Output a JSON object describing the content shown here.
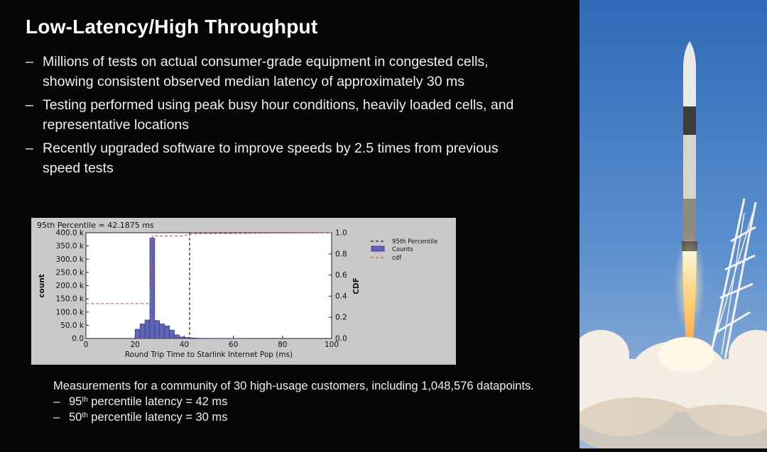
{
  "slide": {
    "title": "Low-Latency/High Throughput",
    "bullets": [
      "Millions of tests on actual consumer-grade equipment in congested cells, showing consistent observed median latency of approximately 30 ms",
      "Testing performed using peak busy hour conditions, heavily loaded cells, and representative locations",
      "Recently upgraded software to improve speeds by 2.5 times from previous speed tests"
    ],
    "bullet_marker": "–"
  },
  "measurements": {
    "intro": "Measurements for a community of 30 high-usage customers, including 1,048,576 datapoints.",
    "items": [
      {
        "ordinal": "95",
        "suffix": "th",
        "text": " percentile latency = 42 ms"
      },
      {
        "ordinal": "50",
        "suffix": "th",
        "text": " percentile latency = 30 ms"
      }
    ]
  },
  "chart_data": {
    "type": "bar",
    "title": "95th Percentile =  42.1875 ms",
    "xlabel": "Round Trip Time to Starlink Internet Pop (ms)",
    "ylabel": "count",
    "y2label": "CDF",
    "xlim": [
      0,
      100
    ],
    "ylim": [
      0,
      400000
    ],
    "y2lim": [
      0,
      1.0
    ],
    "xticks": [
      "0",
      "20",
      "40",
      "60",
      "80",
      "100"
    ],
    "yticks": [
      "0.0",
      "50.0 k",
      "100.0 k",
      "150.0 k",
      "200.0 k",
      "250.0 k",
      "300.0 k",
      "350.0 k",
      "400.0 k"
    ],
    "y2ticks": [
      "0.0",
      "0.2",
      "0.4",
      "0.6",
      "0.8",
      "1.0"
    ],
    "legend": [
      "95th Percentile",
      "Counts",
      "cdf"
    ],
    "percentile_95": 42.1875,
    "bins": [
      {
        "x0": 20,
        "x1": 22,
        "value": 35000
      },
      {
        "x0": 22,
        "x1": 24,
        "value": 55000
      },
      {
        "x0": 24,
        "x1": 26,
        "value": 70000
      },
      {
        "x0": 26,
        "x1": 28,
        "value": 380000
      },
      {
        "x0": 28,
        "x1": 30,
        "value": 68000
      },
      {
        "x0": 30,
        "x1": 32,
        "value": 55000
      },
      {
        "x0": 32,
        "x1": 34,
        "value": 48000
      },
      {
        "x0": 34,
        "x1": 36,
        "value": 32000
      },
      {
        "x0": 36,
        "x1": 38,
        "value": 14000
      },
      {
        "x0": 38,
        "x1": 40,
        "value": 6000
      },
      {
        "x0": 40,
        "x1": 42,
        "value": 4000
      },
      {
        "x0": 42,
        "x1": 44,
        "value": 2500
      },
      {
        "x0": 44,
        "x1": 46,
        "value": 1500
      },
      {
        "x0": 46,
        "x1": 50,
        "value": 800
      },
      {
        "x0": 50,
        "x1": 65,
        "value": 400
      }
    ],
    "cdf": [
      [
        0,
        0.33
      ],
      [
        26,
        0.33
      ],
      [
        27,
        0.97
      ],
      [
        40,
        0.97
      ],
      [
        42,
        0.99
      ],
      [
        100,
        1.0
      ]
    ]
  },
  "colors": {
    "background": "#050505",
    "bar_fill": "#5f64b8",
    "bar_stroke": "#2f3270",
    "cdf_line": "#d8584f",
    "chart_bg": "#c9c9c9"
  },
  "photo": {
    "icon": "rocket-launch-photo"
  }
}
